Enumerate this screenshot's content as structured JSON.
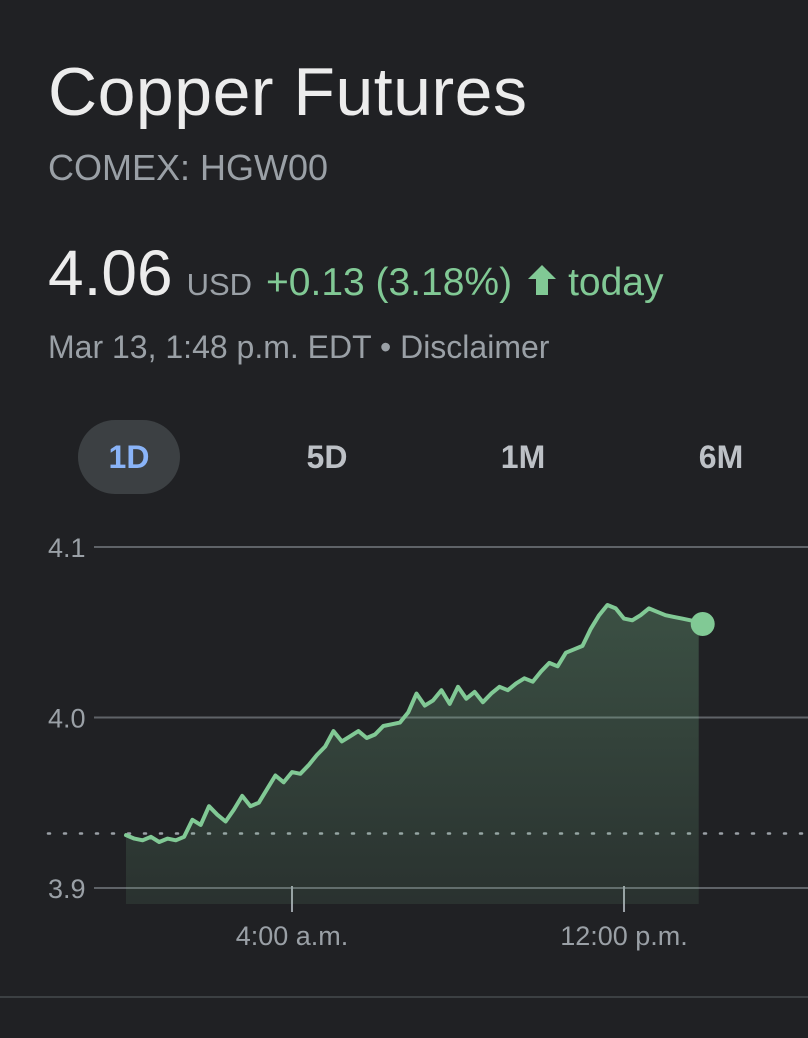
{
  "header": {
    "title": "Copper Futures",
    "ticker": "COMEX: HGW00"
  },
  "quote": {
    "price": "4.06",
    "currency": "USD",
    "change": "+0.13 (3.18%)",
    "direction_icon": "arrow-up-icon",
    "period": "today",
    "timestamp": "Mar 13, 1:48 p.m. EDT",
    "separator": "•",
    "disclaimer": "Disclaimer"
  },
  "tabs": [
    {
      "label": "1D",
      "active": true
    },
    {
      "label": "5D",
      "active": false
    },
    {
      "label": "1M",
      "active": false
    },
    {
      "label": "6M",
      "active": false
    }
  ],
  "colors": {
    "background": "#202124",
    "positive": "#81c995",
    "active_tab_bg": "#3c4043",
    "active_tab_text": "#8ab4f8",
    "muted_text": "#9aa0a6"
  },
  "chart_data": {
    "type": "area",
    "ylim": [
      3.9,
      4.1
    ],
    "y_ticks": [
      "4.1",
      "4.0",
      "3.9"
    ],
    "x_ticks": [
      "4:00 a.m.",
      "12:00 p.m."
    ],
    "x_tick_hours": [
      4,
      12
    ],
    "x_range_hours": [
      -2,
      18
    ],
    "previous_close": 3.932,
    "series": [
      {
        "x_hours": [
          0.0,
          0.2,
          0.4,
          0.6,
          0.8,
          1.0,
          1.2,
          1.4,
          1.6,
          1.8,
          2.0,
          2.2,
          2.4,
          2.6,
          2.8,
          3.0,
          3.2,
          3.4,
          3.6,
          3.8,
          4.0,
          4.2,
          4.4,
          4.6,
          4.8,
          5.0,
          5.2,
          5.4,
          5.6,
          5.8,
          6.0,
          6.2,
          6.4,
          6.6,
          6.8,
          7.0,
          7.2,
          7.4,
          7.6,
          7.8,
          8.0,
          8.2,
          8.4,
          8.6,
          8.8,
          9.0,
          9.2,
          9.4,
          9.6,
          9.8,
          10.0,
          10.2,
          10.4,
          10.6,
          10.8,
          11.0,
          11.2,
          11.4,
          11.6,
          11.8,
          12.0,
          12.2,
          12.4,
          12.6,
          12.8,
          13.0,
          13.2,
          13.4,
          13.6,
          13.8
        ],
        "values": [
          3.931,
          3.929,
          3.928,
          3.93,
          3.927,
          3.929,
          3.928,
          3.93,
          3.94,
          3.937,
          3.948,
          3.943,
          3.939,
          3.946,
          3.954,
          3.948,
          3.95,
          3.958,
          3.966,
          3.962,
          3.968,
          3.967,
          3.972,
          3.978,
          3.983,
          3.992,
          3.986,
          3.989,
          3.992,
          3.988,
          3.99,
          3.995,
          3.996,
          3.997,
          4.003,
          4.014,
          4.007,
          4.01,
          4.016,
          4.008,
          4.018,
          4.011,
          4.015,
          4.009,
          4.014,
          4.018,
          4.016,
          4.02,
          4.023,
          4.021,
          4.027,
          4.032,
          4.03,
          4.038,
          4.04,
          4.042,
          4.052,
          4.06,
          4.066,
          4.064,
          4.058,
          4.057,
          4.06,
          4.064,
          4.062,
          4.06,
          4.059,
          4.058,
          4.057,
          4.056
        ]
      }
    ]
  }
}
